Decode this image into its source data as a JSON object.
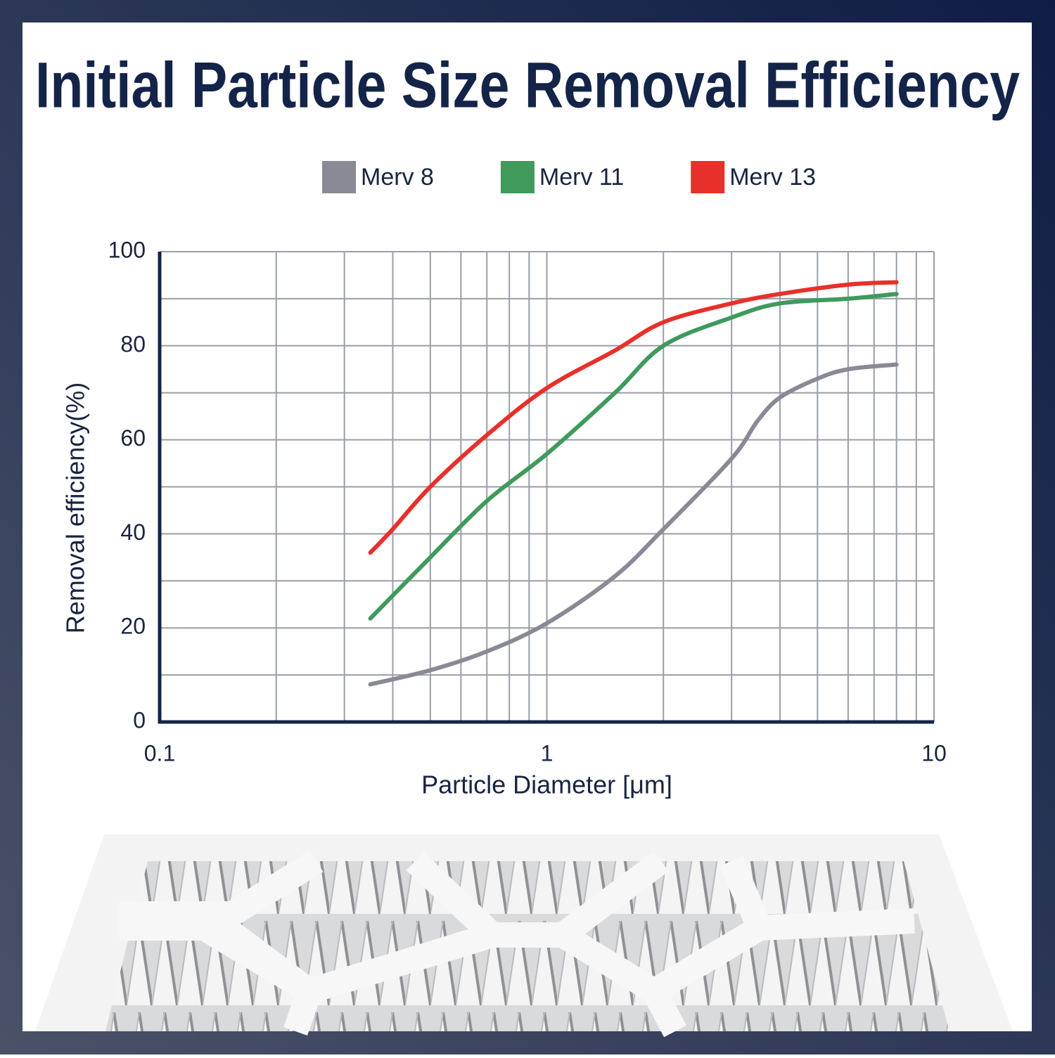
{
  "chart_data": {
    "type": "line",
    "title": "Initial Particle Size Removal Efficiency",
    "x_label": "Particle Diameter [μm]",
    "y_label": "Removal efficiency(%)",
    "xscale": "log",
    "xlim": [
      0.1,
      10
    ],
    "xticks": [
      0.1,
      1,
      10
    ],
    "xgrid": [
      0.2,
      0.3,
      0.4,
      0.5,
      0.6,
      0.7,
      0.8,
      0.9,
      2,
      3,
      4,
      5,
      6,
      7,
      8,
      9
    ],
    "ylim": [
      0,
      100
    ],
    "yticks": [
      0,
      20,
      40,
      60,
      80,
      100
    ],
    "ygrid": [
      10,
      30,
      50,
      70,
      90
    ],
    "grid": true,
    "legend": "top",
    "series": [
      {
        "name": "Merv 8",
        "color": "#8a8a96",
        "x": [
          0.35,
          0.5,
          0.7,
          1,
          1.5,
          2,
          3,
          3.5,
          4,
          5,
          6,
          8
        ],
        "values": [
          8,
          11,
          15,
          21,
          31,
          41,
          56,
          64,
          69,
          73,
          75,
          76
        ]
      },
      {
        "name": "Merv 11",
        "color": "#3f9a5c",
        "x": [
          0.35,
          0.5,
          0.7,
          1,
          1.5,
          2,
          3,
          4,
          6,
          8
        ],
        "values": [
          22,
          35,
          47,
          57,
          70,
          80,
          86,
          89,
          90,
          91
        ]
      },
      {
        "name": "Merv 13",
        "color": "#e8302a",
        "x": [
          0.35,
          0.4,
          0.5,
          0.7,
          1,
          1.5,
          2,
          3,
          4,
          6,
          8
        ],
        "values": [
          36,
          41,
          50,
          61,
          71,
          79,
          85,
          89,
          91,
          93,
          93.5
        ]
      }
    ]
  }
}
